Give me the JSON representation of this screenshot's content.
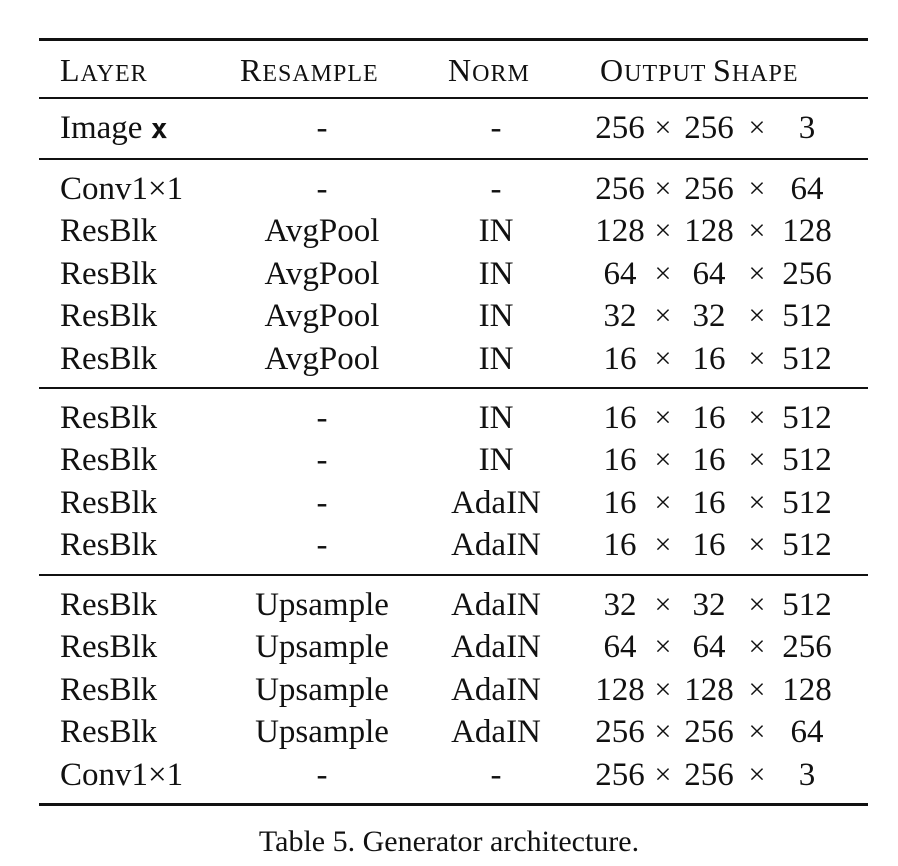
{
  "table": {
    "headers": {
      "layer": {
        "first": "L",
        "rest": "AYER"
      },
      "resample": {
        "first": "R",
        "rest": "ESAMPLE"
      },
      "norm": {
        "first": "N",
        "rest": "ORM"
      },
      "output": {
        "first1": "O",
        "rest1": "UTPUT ",
        "first2": "S",
        "rest2": "HAPE"
      }
    },
    "image_row": {
      "layer_text": "Image ",
      "layer_symbol": "x",
      "resample": "-",
      "norm": "-",
      "shape": [
        "256",
        "256",
        "3"
      ]
    },
    "groups": [
      [
        {
          "layer": "Conv1×1",
          "resample": "-",
          "norm": "-",
          "shape": [
            "256",
            "256",
            "64"
          ]
        },
        {
          "layer": "ResBlk",
          "resample": "AvgPool",
          "norm": "IN",
          "shape": [
            "128",
            "128",
            "128"
          ]
        },
        {
          "layer": "ResBlk",
          "resample": "AvgPool",
          "norm": "IN",
          "shape": [
            "64",
            "64",
            "256"
          ]
        },
        {
          "layer": "ResBlk",
          "resample": "AvgPool",
          "norm": "IN",
          "shape": [
            "32",
            "32",
            "512"
          ]
        },
        {
          "layer": "ResBlk",
          "resample": "AvgPool",
          "norm": "IN",
          "shape": [
            "16",
            "16",
            "512"
          ]
        }
      ],
      [
        {
          "layer": "ResBlk",
          "resample": "-",
          "norm": "IN",
          "shape": [
            "16",
            "16",
            "512"
          ]
        },
        {
          "layer": "ResBlk",
          "resample": "-",
          "norm": "IN",
          "shape": [
            "16",
            "16",
            "512"
          ]
        },
        {
          "layer": "ResBlk",
          "resample": "-",
          "norm": "AdaIN",
          "shape": [
            "16",
            "16",
            "512"
          ]
        },
        {
          "layer": "ResBlk",
          "resample": "-",
          "norm": "AdaIN",
          "shape": [
            "16",
            "16",
            "512"
          ]
        }
      ],
      [
        {
          "layer": "ResBlk",
          "resample": "Upsample",
          "norm": "AdaIN",
          "shape": [
            "32",
            "32",
            "512"
          ]
        },
        {
          "layer": "ResBlk",
          "resample": "Upsample",
          "norm": "AdaIN",
          "shape": [
            "64",
            "64",
            "256"
          ]
        },
        {
          "layer": "ResBlk",
          "resample": "Upsample",
          "norm": "AdaIN",
          "shape": [
            "128",
            "128",
            "128"
          ]
        },
        {
          "layer": "ResBlk",
          "resample": "Upsample",
          "norm": "AdaIN",
          "shape": [
            "256",
            "256",
            "64"
          ]
        },
        {
          "layer": "Conv1×1",
          "resample": "-",
          "norm": "-",
          "shape": [
            "256",
            "256",
            "3"
          ]
        }
      ]
    ],
    "times_symbol": "×"
  },
  "caption": "Table 5. Generator architecture."
}
